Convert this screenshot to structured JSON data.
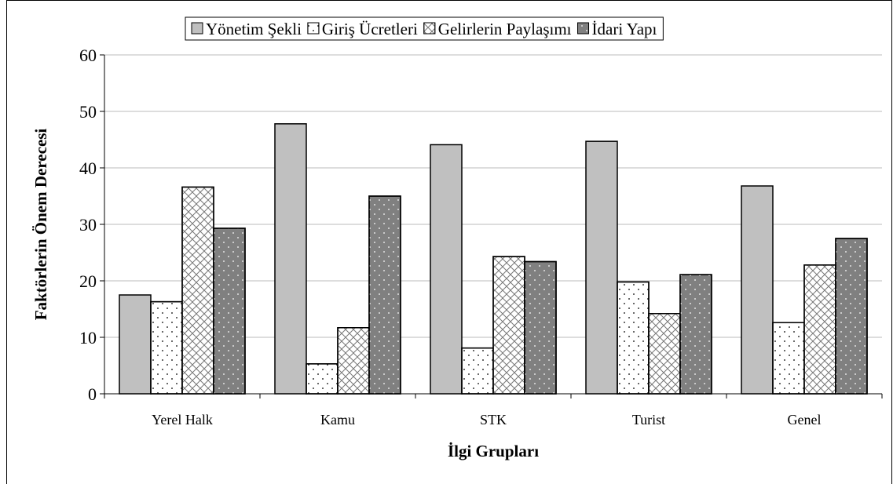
{
  "chart_data": {
    "type": "bar",
    "categories": [
      "Yerel Halk",
      "Kamu",
      "STK",
      "Turist",
      "Genel"
    ],
    "series": [
      {
        "name": "Yönetim Şekli",
        "color": "#c0c0c0",
        "values": [
          17.5,
          47.8,
          44.1,
          44.7,
          36.8
        ]
      },
      {
        "name": "Giriş Ücretleri",
        "color": "#ffffff",
        "values": [
          16.3,
          5.3,
          8.1,
          19.8,
          12.6
        ]
      },
      {
        "name": "Gelirlerin Paylaşımı",
        "color": "#ffffff",
        "values": [
          36.6,
          11.7,
          24.3,
          14.2,
          22.8
        ]
      },
      {
        "name": "İdari Yapı",
        "color": "#808080",
        "values": [
          29.3,
          35.0,
          23.4,
          21.1,
          27.5
        ]
      }
    ],
    "xlabel": "İlgi Grupları",
    "ylabel": "Faktörlerin Önem Derecesi",
    "ylim": [
      0,
      60
    ],
    "yticks": [
      0,
      10,
      20,
      30,
      40,
      50,
      60
    ],
    "grid": true,
    "legend": "top"
  }
}
